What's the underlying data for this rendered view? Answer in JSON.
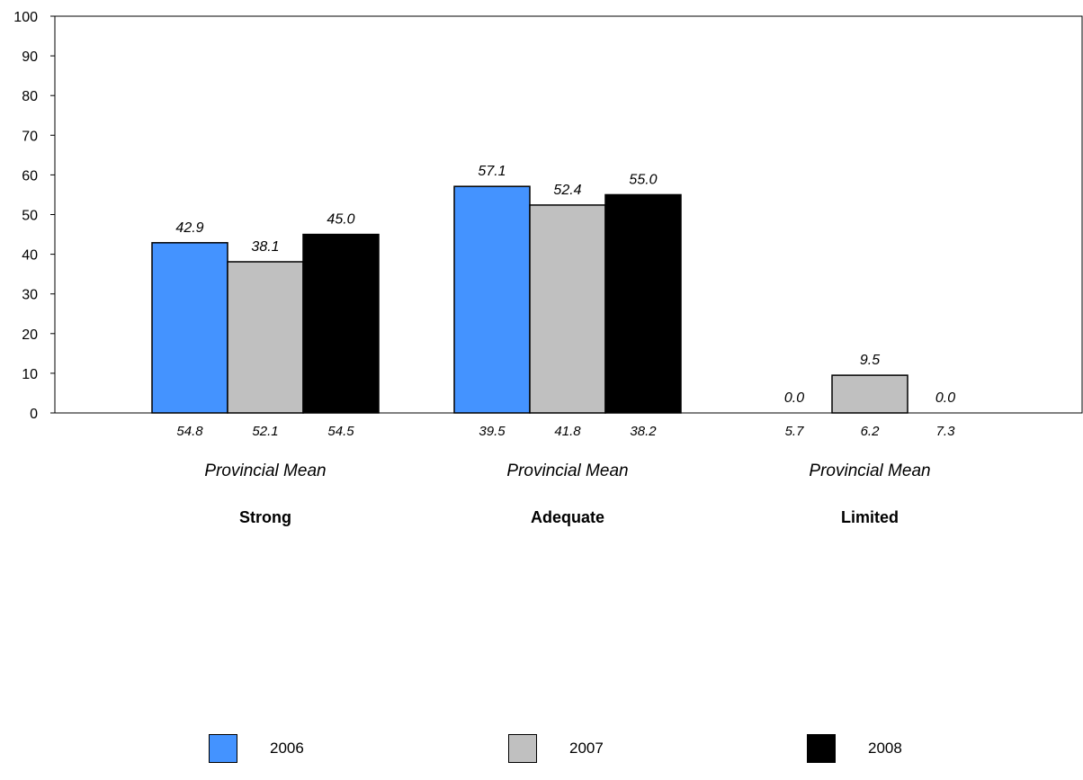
{
  "chart_data": {
    "type": "bar",
    "categories": [
      "Strong",
      "Adequate",
      "Limited"
    ],
    "series": [
      {
        "name": "2006",
        "color": "#4493FF",
        "values": [
          42.9,
          57.1,
          0.0
        ],
        "provincial_mean": [
          54.8,
          39.5,
          5.7
        ]
      },
      {
        "name": "2007",
        "color": "#C0C0C0",
        "values": [
          38.1,
          52.4,
          9.5
        ],
        "provincial_mean": [
          52.1,
          41.8,
          6.2
        ]
      },
      {
        "name": "2008",
        "color": "#000000",
        "values": [
          45.0,
          55.0,
          0.0
        ],
        "provincial_mean": [
          54.5,
          38.2,
          7.3
        ]
      }
    ],
    "value_labels": [
      [
        "42.9",
        "38.1",
        "45.0"
      ],
      [
        "57.1",
        "52.4",
        "55.0"
      ],
      [
        "0.0",
        "9.5",
        "0.0"
      ]
    ],
    "mean_labels": [
      [
        "54.8",
        "52.1",
        "54.5"
      ],
      [
        "39.5",
        "41.8",
        "38.2"
      ],
      [
        "5.7",
        "6.2",
        "7.3"
      ]
    ],
    "group_sublabel": "Provincial Mean",
    "ylim": [
      0,
      100
    ],
    "yticks": [
      0,
      10,
      20,
      30,
      40,
      50,
      60,
      70,
      80,
      90,
      100
    ],
    "grid": false,
    "legend_position": "bottom"
  }
}
